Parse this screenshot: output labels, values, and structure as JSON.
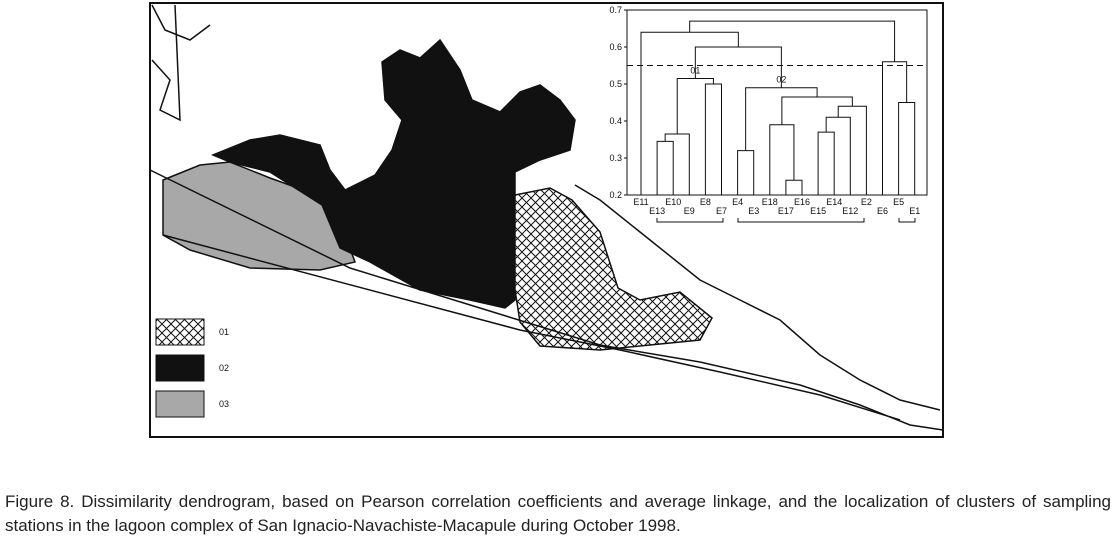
{
  "figure": {
    "dendrogram": {
      "type": "dendrogram",
      "ylim": [
        0.2,
        0.7
      ],
      "yticks": [
        0.2,
        0.3,
        0.4,
        0.5,
        0.6,
        0.7
      ],
      "leaves": [
        "E11",
        "E13",
        "E10",
        "E9",
        "E8",
        "E7",
        "E4",
        "E3",
        "E18",
        "E17",
        "E16",
        "E15",
        "E14",
        "E12",
        "E2",
        "E6",
        "E5",
        "E1"
      ],
      "merges": [
        [
          1,
          2,
          0.345
        ],
        [
          18,
          3,
          0.365
        ],
        [
          4,
          5,
          0.5
        ],
        [
          19,
          20,
          0.515
        ],
        [
          6,
          7,
          0.32
        ],
        [
          9,
          10,
          0.24
        ],
        [
          8,
          23,
          0.39
        ],
        [
          11,
          12,
          0.37
        ],
        [
          25,
          13,
          0.41
        ],
        [
          26,
          14,
          0.44
        ],
        [
          24,
          27,
          0.465
        ],
        [
          22,
          28,
          0.49
        ],
        [
          21,
          29,
          0.6
        ],
        [
          0,
          30,
          0.64
        ],
        [
          16,
          17,
          0.45
        ],
        [
          15,
          32,
          0.56
        ],
        [
          31,
          33,
          0.67
        ]
      ],
      "cutoff": 0.55,
      "clusters": [
        {
          "label": "01",
          "merge": 3
        },
        {
          "label": "02",
          "merge": 11
        }
      ]
    },
    "legend": [
      "01",
      "02",
      "03"
    ],
    "caption": "Figure 8. Dissimilarity dendrogram, based on Pearson correlation coefficients and average linkage, and the localization of clusters of sampling stations in the lagoon complex of San Ignacio-Navachiste-Macapule during October 1998."
  }
}
